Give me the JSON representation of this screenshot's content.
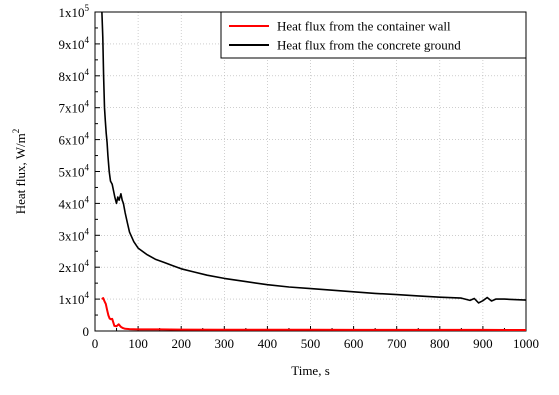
{
  "chart_data": {
    "type": "line",
    "title": "",
    "xlabel": "Time, s",
    "ylabel": "Heat flux, W/m",
    "ylabel_sup": "2",
    "xlim": [
      0,
      1000
    ],
    "ylim": [
      0,
      100000
    ],
    "x_ticks": [
      {
        "value": 0,
        "label": "0"
      },
      {
        "value": 100,
        "label": "100"
      },
      {
        "value": 200,
        "label": "200"
      },
      {
        "value": 300,
        "label": "300"
      },
      {
        "value": 400,
        "label": "400"
      },
      {
        "value": 500,
        "label": "500"
      },
      {
        "value": 600,
        "label": "600"
      },
      {
        "value": 700,
        "label": "700"
      },
      {
        "value": 800,
        "label": "800"
      },
      {
        "value": 900,
        "label": "900"
      },
      {
        "value": 1000,
        "label": "1000"
      }
    ],
    "y_ticks": [
      {
        "value": 0,
        "base": "0",
        "exp": ""
      },
      {
        "value": 10000,
        "base": "1x10",
        "exp": "4"
      },
      {
        "value": 20000,
        "base": "2x10",
        "exp": "4"
      },
      {
        "value": 30000,
        "base": "3x10",
        "exp": "4"
      },
      {
        "value": 40000,
        "base": "4x10",
        "exp": "4"
      },
      {
        "value": 50000,
        "base": "5x10",
        "exp": "4"
      },
      {
        "value": 60000,
        "base": "6x10",
        "exp": "4"
      },
      {
        "value": 70000,
        "base": "7x10",
        "exp": "4"
      },
      {
        "value": 80000,
        "base": "8x10",
        "exp": "4"
      },
      {
        "value": 90000,
        "base": "9x10",
        "exp": "4"
      },
      {
        "value": 100000,
        "base": "1x10",
        "exp": "5"
      }
    ],
    "legend_position": "top-right",
    "grid": true,
    "series": [
      {
        "name": "Heat flux from the container wall",
        "color": "#ff0000",
        "x": [
          16,
          19,
          22,
          25,
          28,
          31,
          34,
          37,
          40,
          45,
          50,
          55,
          60,
          65,
          70,
          80,
          100,
          150,
          200,
          300,
          400,
          500,
          600,
          700,
          800,
          900,
          1000
        ],
        "y": [
          10000,
          10300,
          9300,
          8500,
          6600,
          4900,
          3900,
          3700,
          3800,
          1600,
          1500,
          2100,
          1300,
          900,
          700,
          600,
          500,
          500,
          450,
          420,
          400,
          380,
          360,
          350,
          340,
          330,
          320
        ]
      },
      {
        "name": "Heat flux from the concrete ground",
        "color": "#000000",
        "x": [
          16,
          18,
          20,
          22,
          24,
          26,
          28,
          30,
          33,
          36,
          40,
          43,
          46,
          50,
          53,
          56,
          60,
          63,
          66,
          70,
          75,
          80,
          90,
          100,
          120,
          140,
          160,
          180,
          200,
          230,
          260,
          300,
          350,
          400,
          450,
          500,
          550,
          600,
          650,
          700,
          750,
          800,
          850,
          870,
          880,
          890,
          900,
          910,
          920,
          930,
          950,
          1000
        ],
        "y": [
          100000,
          92000,
          80000,
          70000,
          66000,
          62000,
          59000,
          55000,
          50000,
          47000,
          46000,
          44000,
          42000,
          40000,
          42000,
          41000,
          43000,
          41000,
          40000,
          37000,
          34000,
          31000,
          28000,
          26000,
          24000,
          22500,
          21500,
          20500,
          19500,
          18500,
          17500,
          16500,
          15500,
          14500,
          13800,
          13300,
          12800,
          12300,
          11800,
          11400,
          11000,
          10600,
          10300,
          9600,
          10200,
          8800,
          9500,
          10500,
          9400,
          10000,
          10000,
          9700
        ]
      }
    ]
  }
}
